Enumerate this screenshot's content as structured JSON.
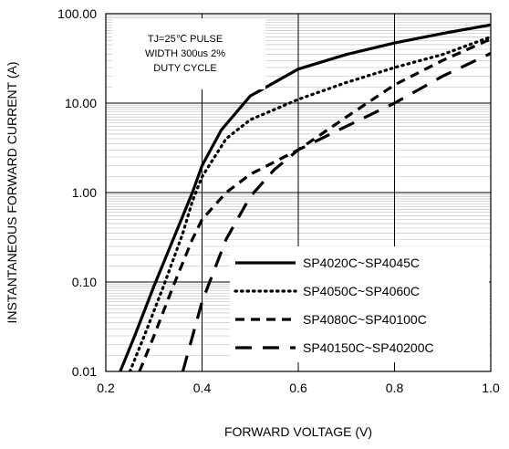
{
  "chart_data": {
    "type": "line",
    "xlabel": "FORWARD VOLTAGE (V)",
    "ylabel": "INSTANTANEOUS FORWARD CURRENT (A)",
    "xlim": [
      0.2,
      1.0
    ],
    "ylim": [
      0.01,
      100
    ],
    "yscale": "log",
    "grid": true,
    "x_ticks": [
      "0.2",
      "0.4",
      "0.6",
      "0.8",
      "1.0"
    ],
    "y_ticks": [
      "0.01",
      "0.10",
      "1.00",
      "10.00",
      "100.00"
    ],
    "legend_position": "lower-right",
    "annotation": {
      "lines": [
        "TJ=25℃ PULSE",
        "WIDTH 300us 2%",
        "DUTY CYCLE"
      ]
    },
    "series": [
      {
        "name": "SP4020C~SP4045C",
        "style": "solid",
        "x": [
          0.23,
          0.26,
          0.3,
          0.34,
          0.38,
          0.4,
          0.44,
          0.5,
          0.6,
          0.7,
          0.8,
          0.9,
          1.0
        ],
        "y": [
          0.01,
          0.025,
          0.09,
          0.3,
          1.0,
          2.0,
          5.0,
          12,
          24,
          35,
          47,
          60,
          75
        ]
      },
      {
        "name": "SP4050C~SP4060C",
        "style": "dotted",
        "x": [
          0.25,
          0.28,
          0.32,
          0.36,
          0.38,
          0.4,
          0.45,
          0.5,
          0.6,
          0.7,
          0.8,
          0.9,
          1.0
        ],
        "y": [
          0.01,
          0.025,
          0.09,
          0.35,
          0.8,
          1.5,
          4.0,
          6.5,
          11,
          17,
          25,
          35,
          55
        ]
      },
      {
        "name": "SP4080C~SP40100C",
        "style": "dashed",
        "x": [
          0.27,
          0.3,
          0.34,
          0.38,
          0.4,
          0.45,
          0.5,
          0.6,
          0.7,
          0.8,
          0.9,
          1.0
        ],
        "y": [
          0.01,
          0.025,
          0.09,
          0.3,
          0.5,
          1.0,
          1.6,
          3.0,
          7.0,
          16,
          30,
          52
        ]
      },
      {
        "name": "SP40150C~SP40200C",
        "style": "longdash",
        "x": [
          0.36,
          0.4,
          0.45,
          0.5,
          0.55,
          0.6,
          0.7,
          0.8,
          0.9,
          1.0
        ],
        "y": [
          0.01,
          0.06,
          0.3,
          0.9,
          1.8,
          3.0,
          5.5,
          10,
          20,
          36
        ]
      }
    ]
  }
}
